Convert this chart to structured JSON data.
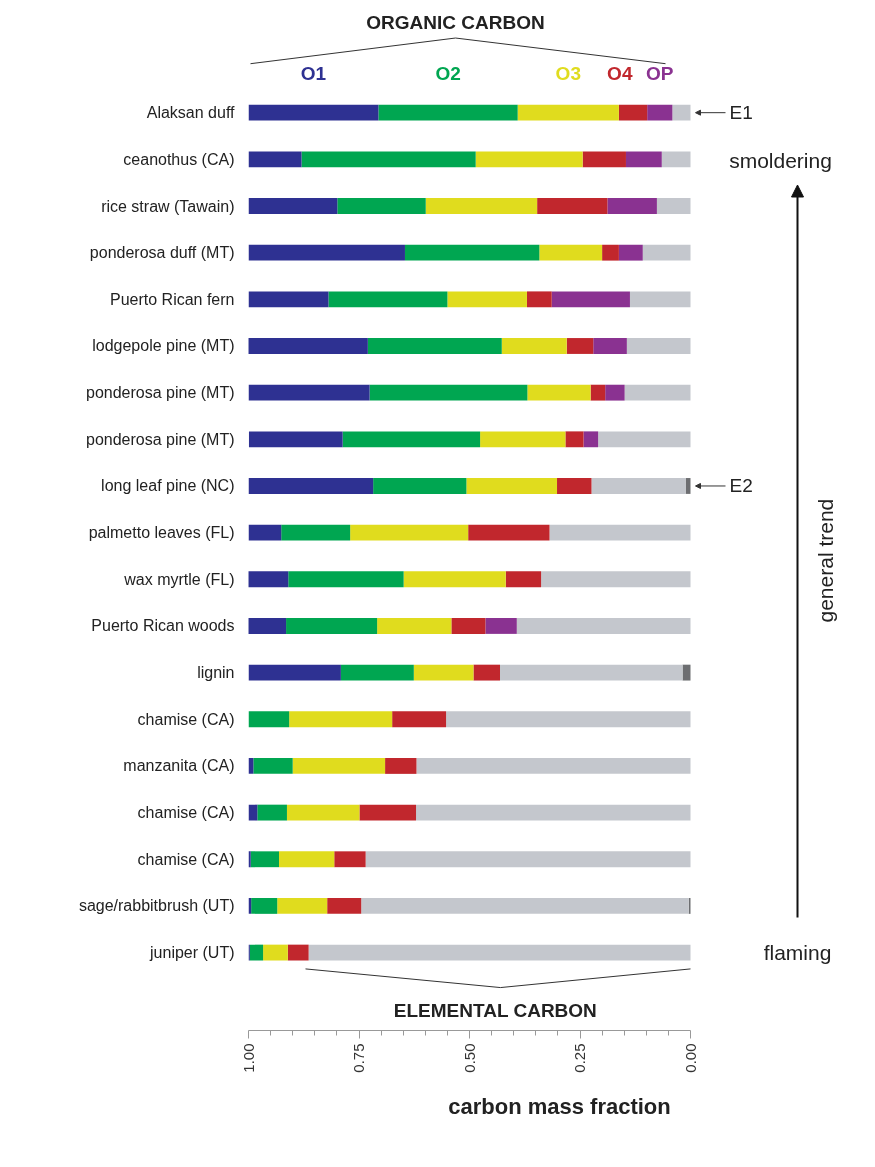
{
  "chart_data": {
    "type": "bar",
    "orientation": "horizontal",
    "stacked": true,
    "categories": [
      "Alaksan duff",
      "ceanothus (CA)",
      "rice straw (Tawain)",
      "ponderosa duff (MT)",
      "Puerto Rican fern",
      "lodgepole pine (MT)",
      "ponderosa pine (MT)",
      "ponderosa pine (MT)",
      "long leaf pine (NC)",
      "palmetto leaves (FL)",
      "wax myrtle (FL)",
      "Puerto Rican woods",
      "lignin",
      "chamise (CA)",
      "manzanita (CA)",
      "chamise (CA)",
      "chamise (CA)",
      "sage/rabbitbrush (UT)",
      "juniper (UT)"
    ],
    "series": [
      {
        "color": "#6d6e71",
        "values": [
          0,
          0,
          0,
          0,
          0,
          0,
          0,
          0,
          0.011,
          0,
          0,
          0,
          0.018,
          0,
          0,
          0,
          0,
          0.004,
          0
        ]
      },
      {
        "color": "#c4c7cd",
        "values": [
          0.041,
          0.065,
          0.076,
          0.108,
          0.137,
          0.144,
          0.149,
          0.209,
          0.213,
          0.319,
          0.338,
          0.393,
          0.413,
          0.553,
          0.62,
          0.621,
          0.735,
          0.741,
          0.864
        ]
      },
      {
        "name": "OP",
        "color": "#8a3291",
        "values": [
          0.057,
          0.081,
          0.112,
          0.054,
          0.177,
          0.076,
          0.044,
          0.033,
          0,
          0,
          0,
          0.071,
          0,
          0,
          0,
          0,
          0,
          0,
          0
        ]
      },
      {
        "name": "O4",
        "color": "#c1272d",
        "values": [
          0.064,
          0.098,
          0.159,
          0.038,
          0.056,
          0.06,
          0.033,
          0.041,
          0.078,
          0.184,
          0.08,
          0.077,
          0.06,
          0.122,
          0.071,
          0.128,
          0.071,
          0.077,
          0.047
        ]
      },
      {
        "name": "O3",
        "color": "#e0dc1e",
        "values": [
          0.229,
          0.242,
          0.252,
          0.142,
          0.18,
          0.147,
          0.143,
          0.193,
          0.205,
          0.267,
          0.231,
          0.168,
          0.135,
          0.233,
          0.209,
          0.164,
          0.125,
          0.113,
          0.056
        ]
      },
      {
        "name": "O2",
        "color": "#00a651",
        "values": [
          0.315,
          0.394,
          0.2,
          0.304,
          0.269,
          0.303,
          0.357,
          0.311,
          0.211,
          0.156,
          0.261,
          0.206,
          0.165,
          0.092,
          0.089,
          0.067,
          0.064,
          0.059,
          0.03
        ]
      },
      {
        "name": "O1",
        "color": "#2e3192",
        "values": [
          0.294,
          0.12,
          0.201,
          0.354,
          0.181,
          0.271,
          0.274,
          0.212,
          0.282,
          0.074,
          0.091,
          0.086,
          0.209,
          0,
          0.011,
          0.02,
          0.005,
          0.006,
          0.003
        ]
      }
    ],
    "xlim": [
      1,
      0
    ],
    "xticks": [
      {
        "value": 1,
        "label": "1.00"
      },
      {
        "value": 0.75,
        "label": "0.75"
      },
      {
        "value": 0.5,
        "label": "0.50"
      },
      {
        "value": 0.25,
        "label": "0.25"
      },
      {
        "value": 0,
        "label": "0.00"
      }
    ],
    "xlabel": "carbon mass fraction",
    "legend": "top",
    "annotations": [
      "ORGANIC CARBON",
      "ELEMENTAL CARBON",
      "smoldering",
      "general trend",
      "flaming",
      {
        "text": "E1",
        "x": 0,
        "y": "Alaksan duff"
      },
      {
        "text": "E2",
        "x": 0,
        "y": "long leaf pine (NC)"
      }
    ]
  }
}
